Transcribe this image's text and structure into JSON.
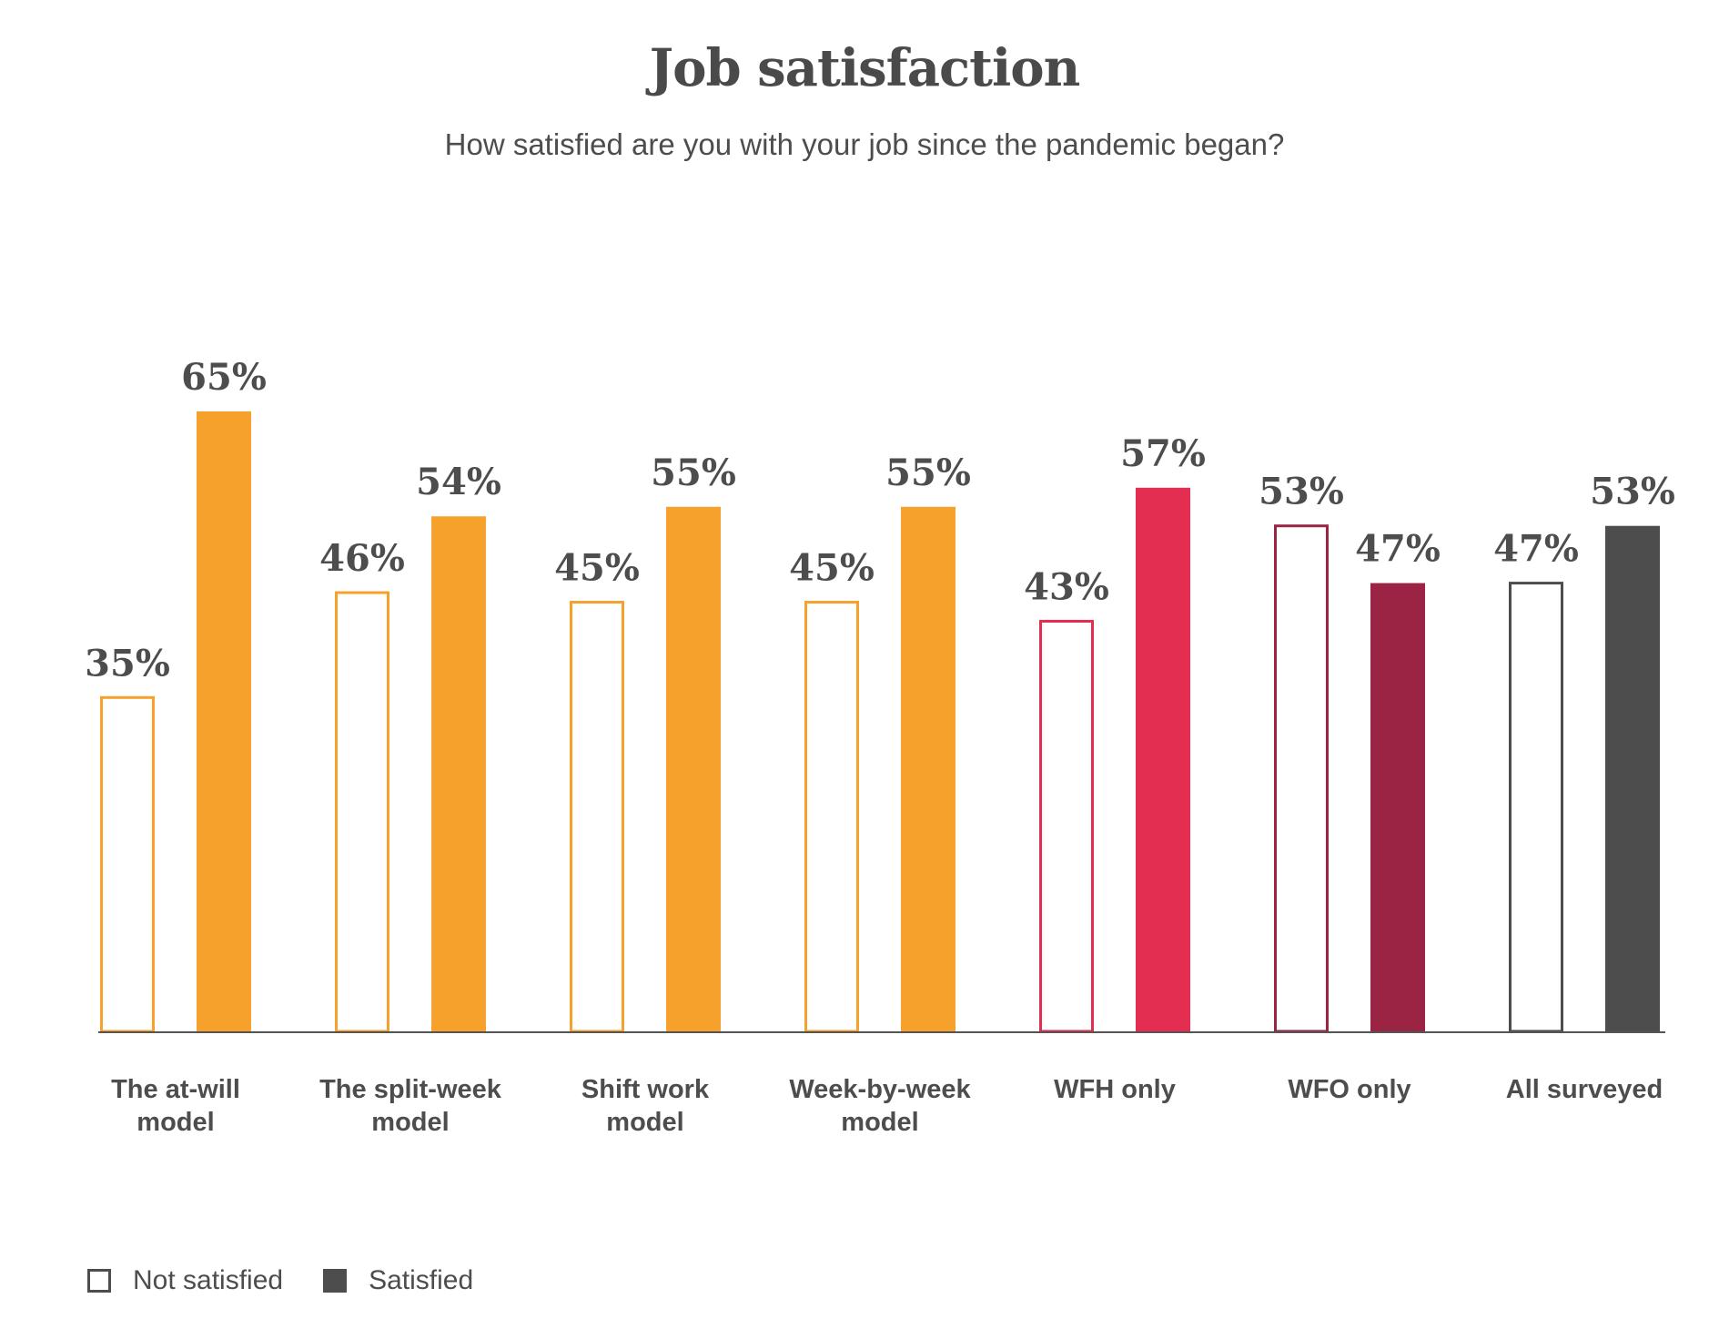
{
  "header": {
    "title": "Job satisfaction",
    "subtitle": "How satisfied are you with your job since the pandemic began?"
  },
  "legend": {
    "not_satisfied": "Not satisfied",
    "satisfied": "Satisfied"
  },
  "chart_data": {
    "type": "bar",
    "title": "Job satisfaction",
    "subtitle": "How satisfied are you with your job since the pandemic began?",
    "categories": [
      [
        "The at-will",
        "model"
      ],
      [
        "The split-week",
        "model"
      ],
      [
        "Shift work",
        "model"
      ],
      [
        "Week-by-week",
        "model"
      ],
      [
        "WFH only"
      ],
      [
        "WFO only"
      ],
      [
        "All surveyed"
      ]
    ],
    "series": [
      {
        "name": "Not satisfied",
        "values": [
          35,
          46,
          45,
          45,
          43,
          53,
          47
        ],
        "style": "outline"
      },
      {
        "name": "Satisfied",
        "values": [
          65,
          54,
          55,
          55,
          57,
          47,
          53
        ],
        "style": "filled"
      }
    ],
    "value_labels": {
      "not_satisfied": [
        "35%",
        "46%",
        "45%",
        "45%",
        "43%",
        "53%",
        "47%"
      ],
      "satisfied": [
        "65%",
        "54%",
        "55%",
        "55%",
        "57%",
        "47%",
        "53%"
      ]
    },
    "category_colors": [
      "#f5a12b",
      "#f5a12b",
      "#f5a12b",
      "#f5a12b",
      "#e32d51",
      "#9b2344",
      "#4d4d4d"
    ],
    "ylim": [
      0,
      65
    ],
    "grid": false,
    "legend_position": "bottom-left"
  }
}
